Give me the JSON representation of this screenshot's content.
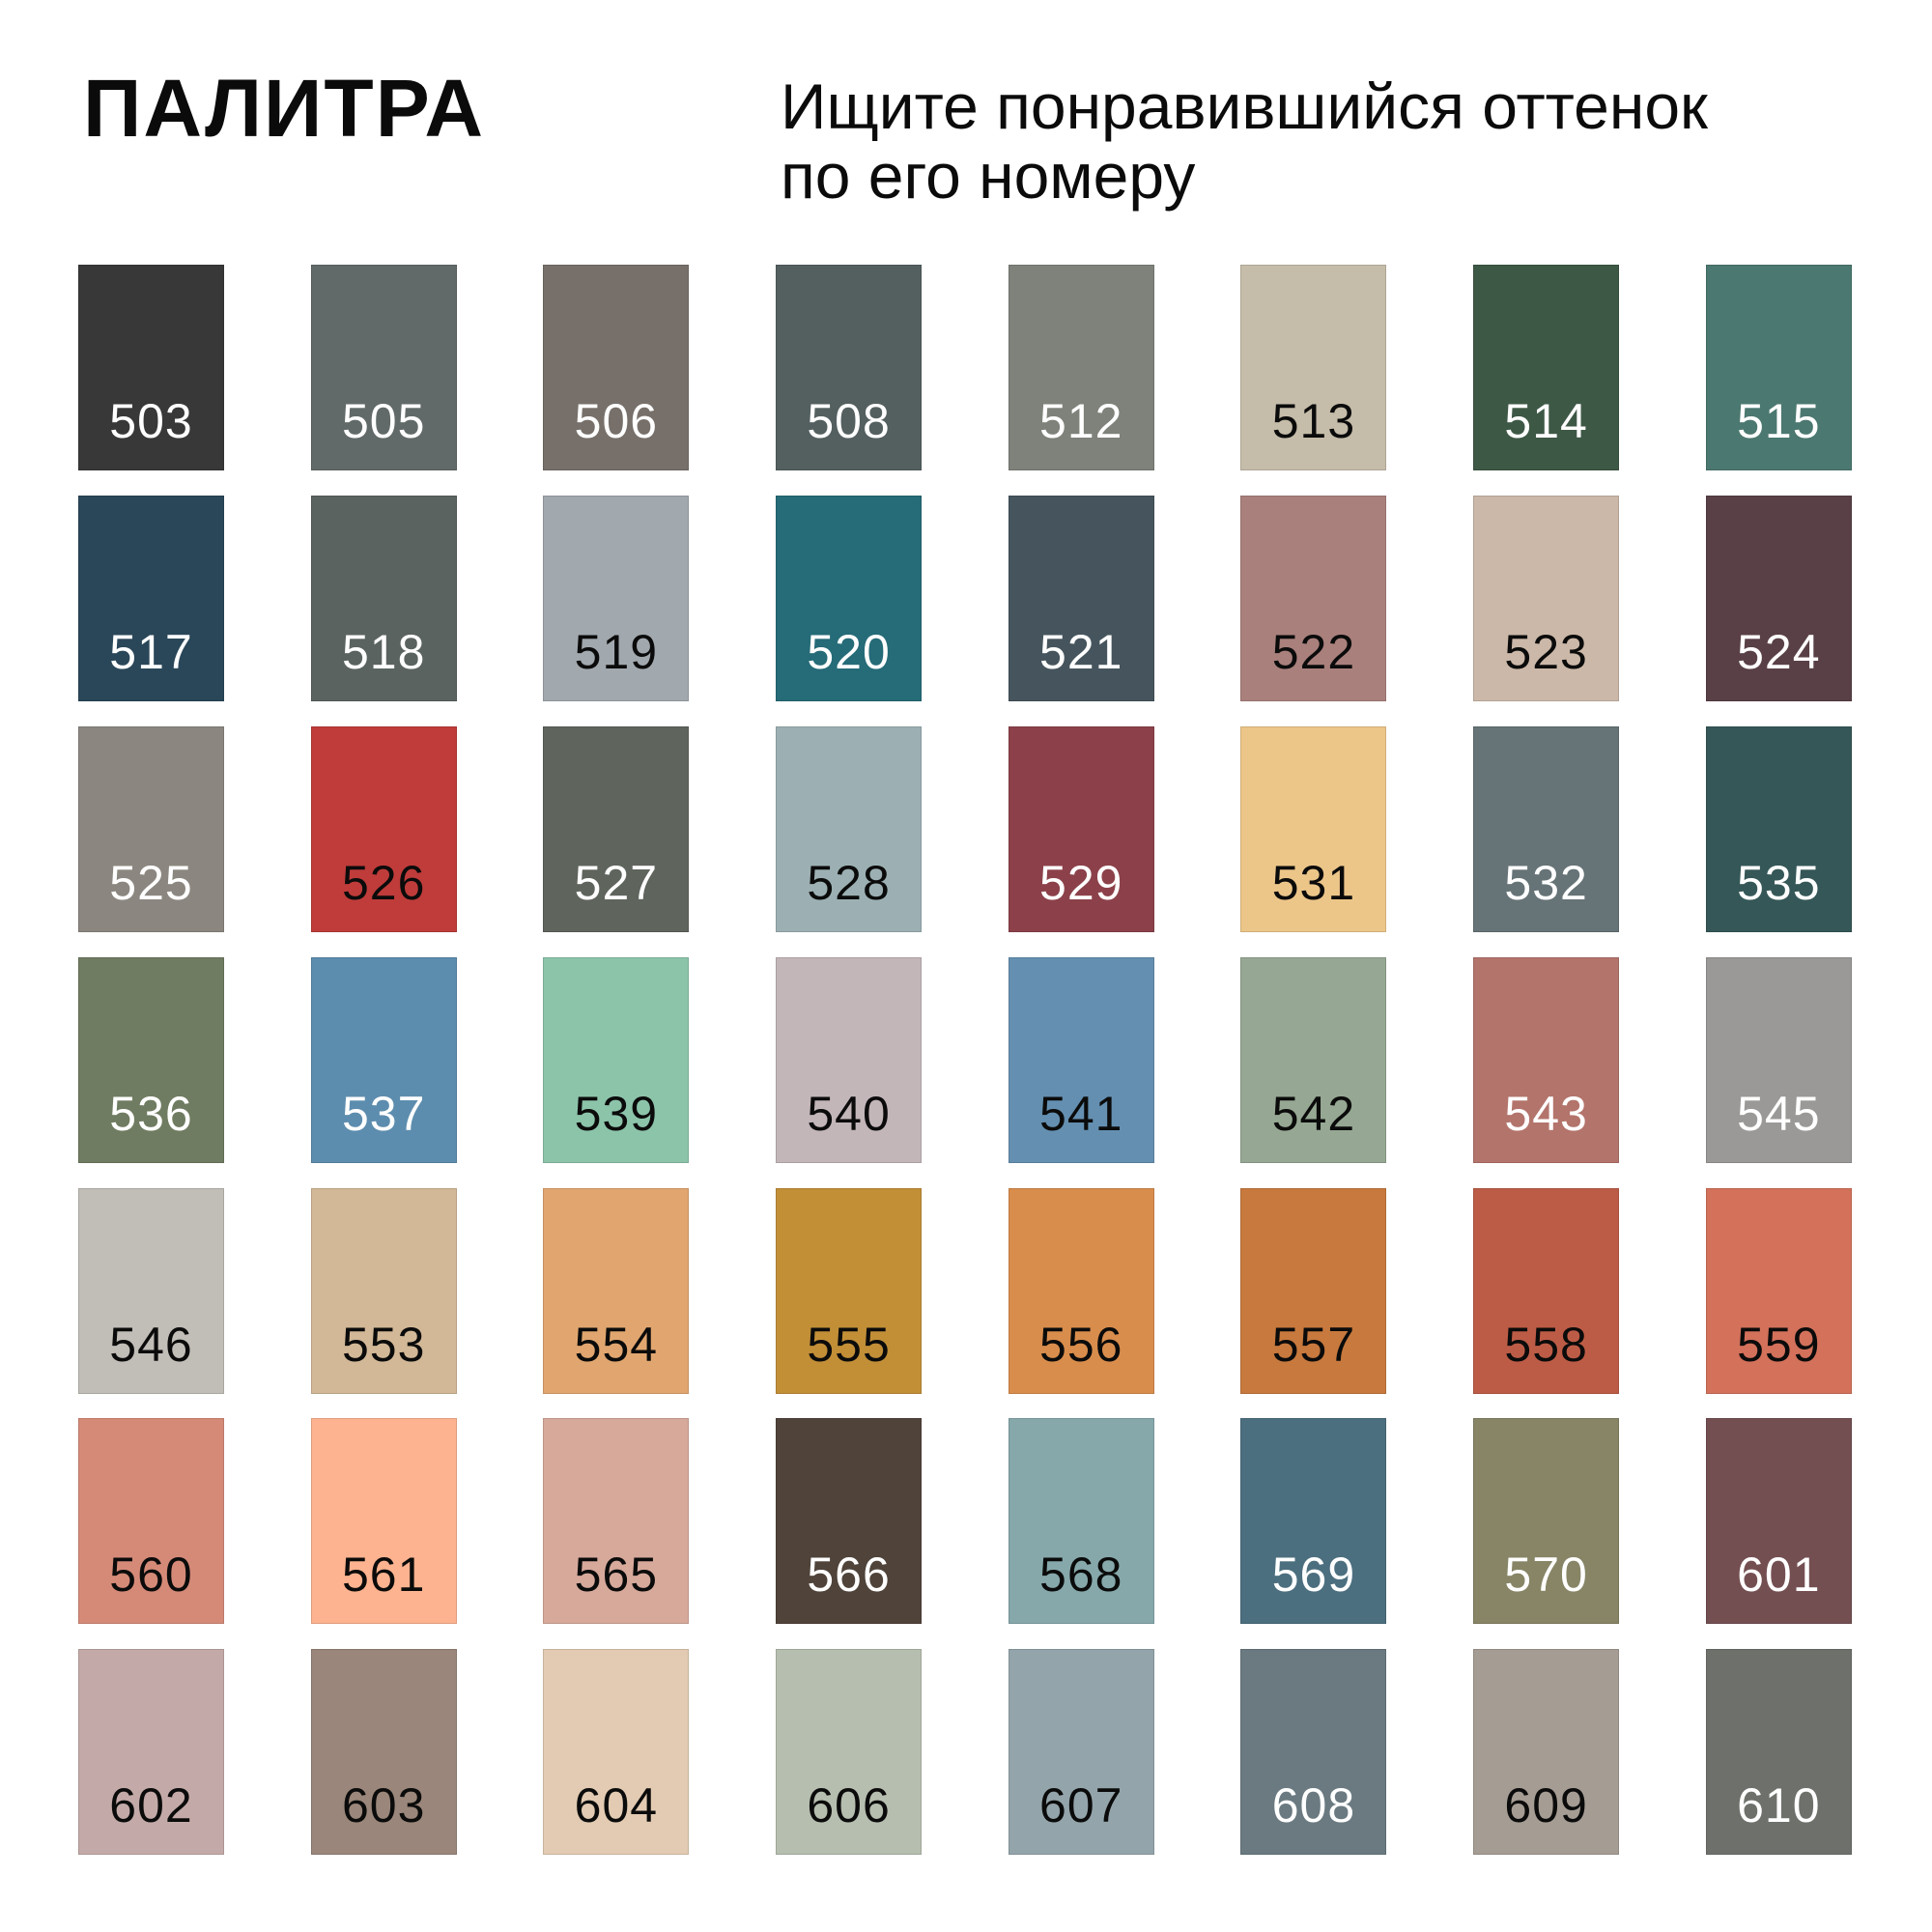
{
  "header": {
    "title": "ПАЛИТРА",
    "subtitle_line1": "Ищите понравившийся оттенок",
    "subtitle_line2": "по его номеру"
  },
  "swatches": [
    {
      "code": "503",
      "color": "#383838",
      "text": "light-on-dark"
    },
    {
      "code": "505",
      "color": "#626a69",
      "text": "light-on-dark"
    },
    {
      "code": "506",
      "color": "#77706a",
      "text": "light-on-dark"
    },
    {
      "code": "508",
      "color": "#545f60",
      "text": "light-on-dark"
    },
    {
      "code": "512",
      "color": "#7e827a",
      "text": "light-on-dark"
    },
    {
      "code": "513",
      "color": "#c5bca9",
      "text": "dark-on-light"
    },
    {
      "code": "514",
      "color": "#3e5846",
      "text": "light-on-dark"
    },
    {
      "code": "515",
      "color": "#4b7870",
      "text": "light-on-dark"
    },
    {
      "code": "517",
      "color": "#2a4759",
      "text": "light-on-dark"
    },
    {
      "code": "518",
      "color": "#5a6360",
      "text": "light-on-dark"
    },
    {
      "code": "519",
      "color": "#a1a8ae",
      "text": "dark-on-light"
    },
    {
      "code": "520",
      "color": "#256b78",
      "text": "light-on-dark"
    },
    {
      "code": "521",
      "color": "#46555d",
      "text": "light-on-dark"
    },
    {
      "code": "522",
      "color": "#a9807c",
      "text": "dark-on-light"
    },
    {
      "code": "523",
      "color": "#cbb8a8",
      "text": "dark-on-light"
    },
    {
      "code": "524",
      "color": "#594046",
      "text": "light-on-dark"
    },
    {
      "code": "525",
      "color": "#8b8780",
      "text": "light-on-dark"
    },
    {
      "code": "526",
      "color": "#bf3c3a",
      "text": "dark-on-light"
    },
    {
      "code": "527",
      "color": "#5f645d",
      "text": "light-on-dark"
    },
    {
      "code": "528",
      "color": "#9cb0b3",
      "text": "dark-on-light"
    },
    {
      "code": "529",
      "color": "#8c414a",
      "text": "light-on-dark"
    },
    {
      "code": "531",
      "color": "#ecc689",
      "text": "dark-on-light"
    },
    {
      "code": "532",
      "color": "#667377",
      "text": "light-on-dark"
    },
    {
      "code": "535",
      "color": "#355757",
      "text": "light-on-dark"
    },
    {
      "code": "536",
      "color": "#707c61",
      "text": "light-on-dark"
    },
    {
      "code": "537",
      "color": "#5d8dae",
      "text": "light-on-dark"
    },
    {
      "code": "539",
      "color": "#8cc4aa",
      "text": "dark-on-light"
    },
    {
      "code": "540",
      "color": "#c3b6b9",
      "text": "dark-on-light"
    },
    {
      "code": "541",
      "color": "#648fb0",
      "text": "dark-on-light"
    },
    {
      "code": "542",
      "color": "#96a893",
      "text": "dark-on-light"
    },
    {
      "code": "543",
      "color": "#b3746b",
      "text": "light-on-dark"
    },
    {
      "code": "545",
      "color": "#9a9997",
      "text": "light-on-dark"
    },
    {
      "code": "546",
      "color": "#c1bdb7",
      "text": "dark-on-light"
    },
    {
      "code": "553",
      "color": "#d2b897",
      "text": "dark-on-light"
    },
    {
      "code": "554",
      "color": "#e1a66f",
      "text": "dark-on-light"
    },
    {
      "code": "555",
      "color": "#c28f37",
      "text": "dark-on-light"
    },
    {
      "code": "556",
      "color": "#d98d4c",
      "text": "dark-on-light"
    },
    {
      "code": "557",
      "color": "#c8793d",
      "text": "dark-on-light"
    },
    {
      "code": "558",
      "color": "#bd5c46",
      "text": "dark-on-light"
    },
    {
      "code": "559",
      "color": "#d3715b",
      "text": "dark-on-light"
    },
    {
      "code": "560",
      "color": "#d58a78",
      "text": "dark-on-light"
    },
    {
      "code": "561",
      "color": "#fdb38f",
      "text": "dark-on-light"
    },
    {
      "code": "565",
      "color": "#d7a99b",
      "text": "dark-on-light"
    },
    {
      "code": "566",
      "color": "#4f433a",
      "text": "light-on-dark"
    },
    {
      "code": "568",
      "color": "#86a8ab",
      "text": "dark-on-light"
    },
    {
      "code": "569",
      "color": "#4c6f7f",
      "text": "light-on-dark"
    },
    {
      "code": "570",
      "color": "#878566",
      "text": "light-on-dark"
    },
    {
      "code": "601",
      "color": "#744f52",
      "text": "light-on-dark"
    },
    {
      "code": "602",
      "color": "#c3aaa8",
      "text": "dark-on-light"
    },
    {
      "code": "603",
      "color": "#9a867a",
      "text": "dark-on-light"
    },
    {
      "code": "604",
      "color": "#e2cbb2",
      "text": "dark-on-light"
    },
    {
      "code": "606",
      "color": "#b6beaf",
      "text": "dark-on-light"
    },
    {
      "code": "607",
      "color": "#93a4aa",
      "text": "dark-on-light"
    },
    {
      "code": "608",
      "color": "#6a7a80",
      "text": "light-on-dark"
    },
    {
      "code": "609",
      "color": "#a59c94",
      "text": "dark-on-light"
    },
    {
      "code": "610",
      "color": "#6e716b",
      "text": "light-on-dark"
    }
  ]
}
